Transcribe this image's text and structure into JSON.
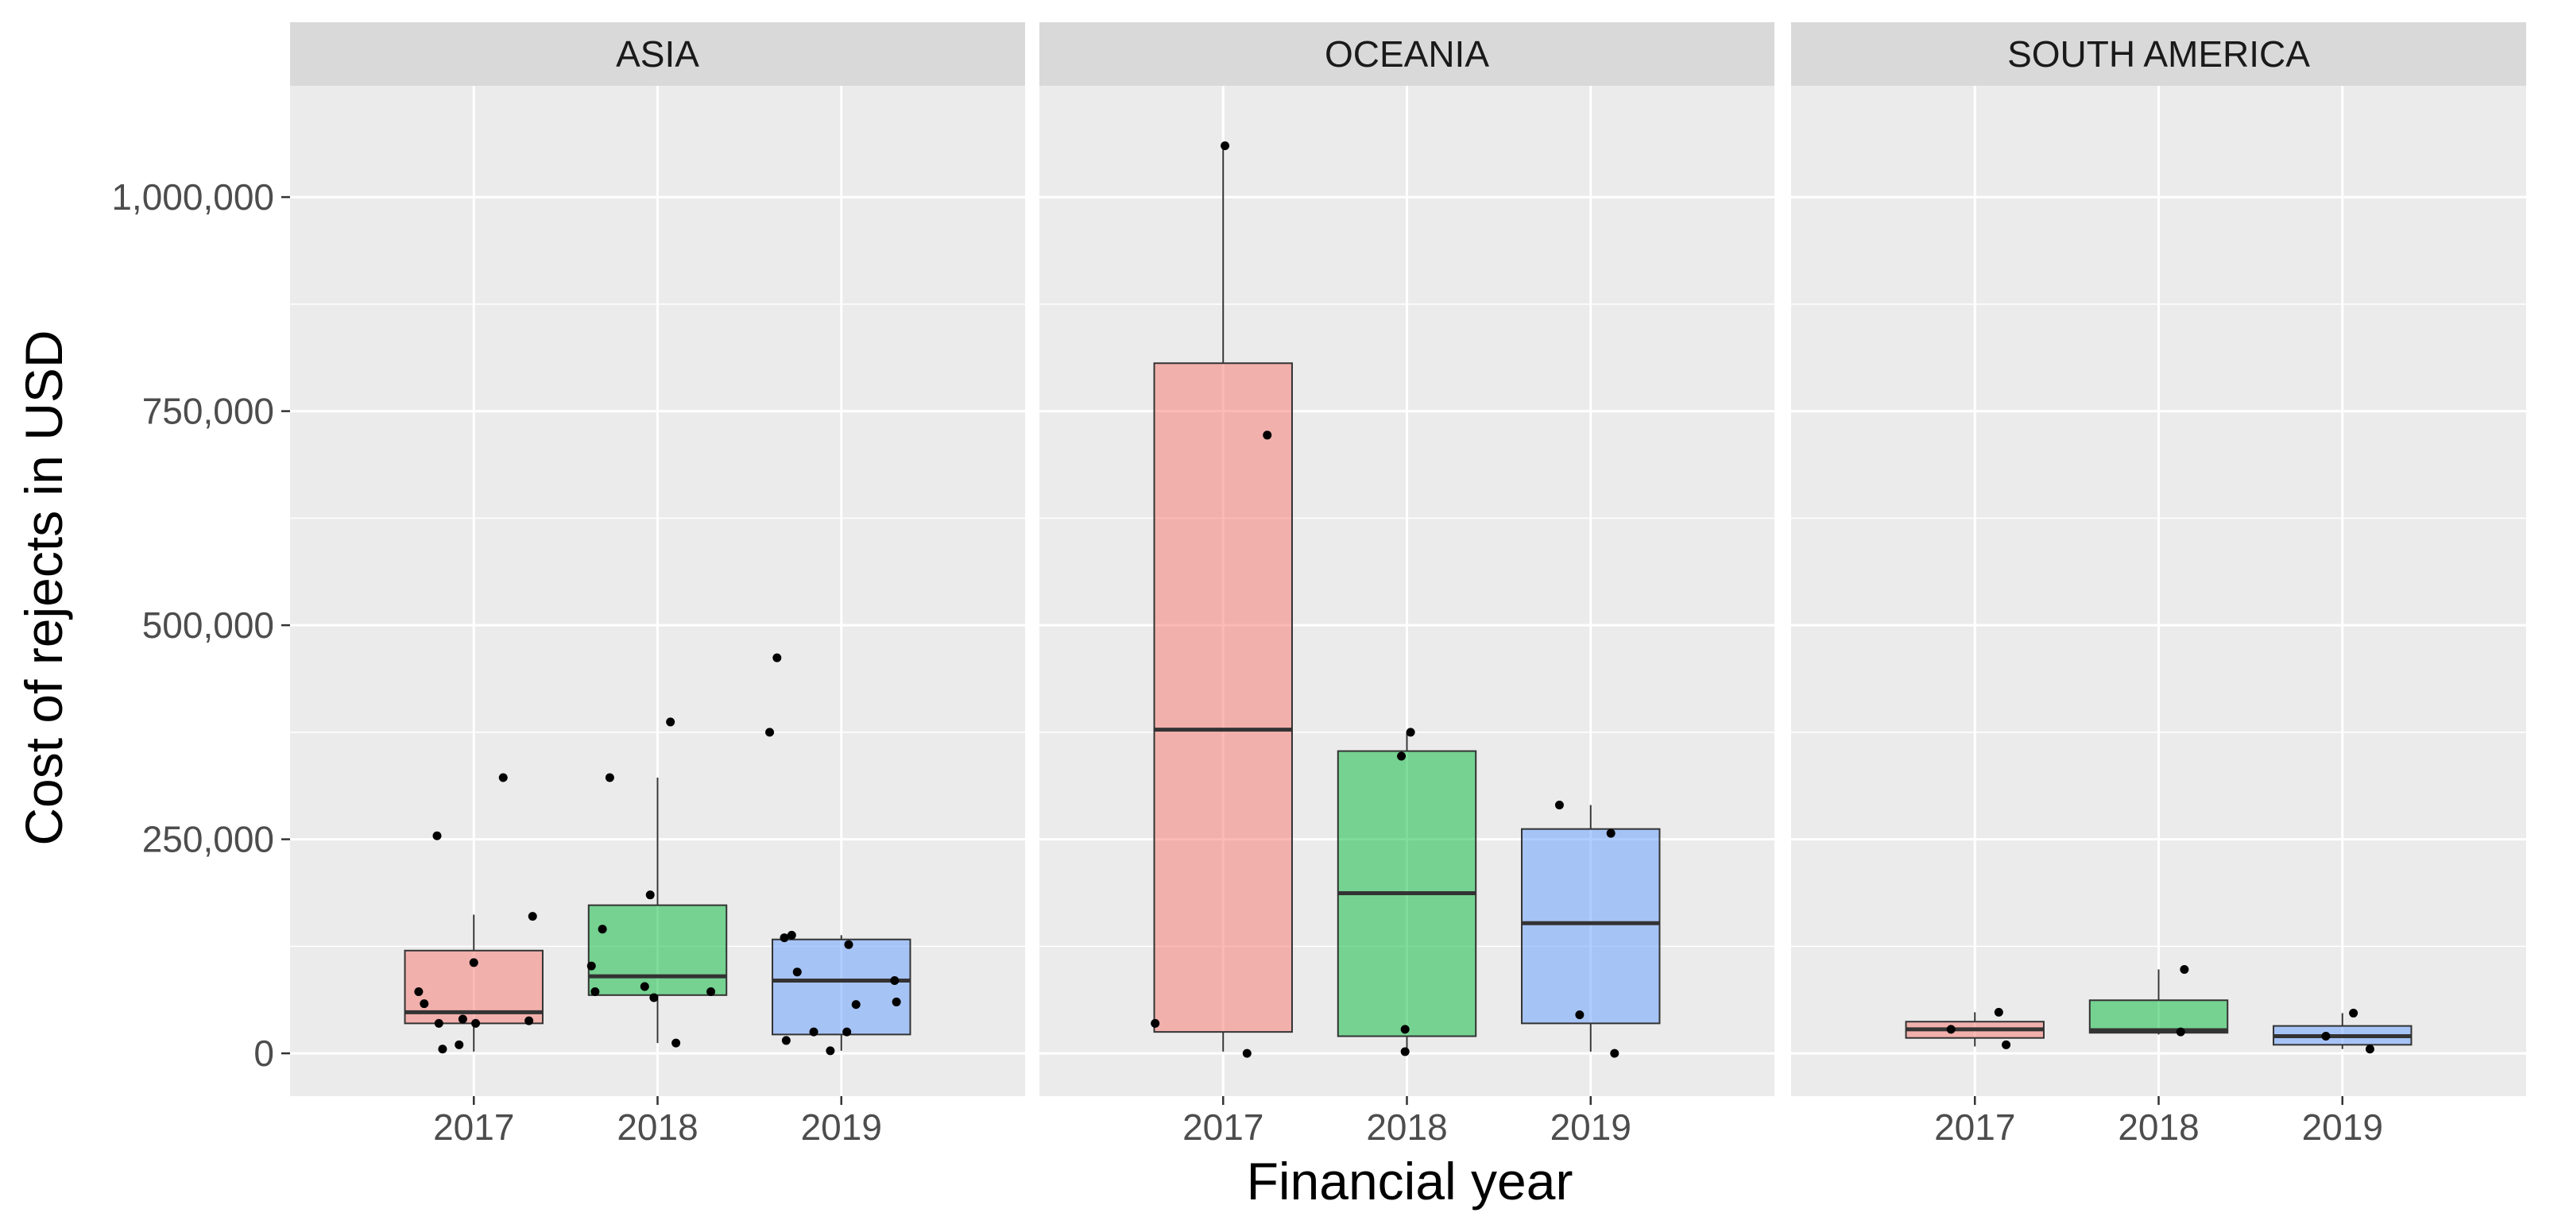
{
  "chart_data": {
    "type": "boxplot",
    "title": "",
    "xlabel": "Financial year",
    "ylabel": "Cost of rejects in USD",
    "ylim": [
      -50000,
      1130000
    ],
    "y_ticks": [
      0,
      250000,
      500000,
      750000,
      1000000
    ],
    "y_tick_labels": [
      "0",
      "250,000",
      "500,000",
      "750,000",
      "1,000,000"
    ],
    "categories": [
      "2017",
      "2018",
      "2019"
    ],
    "colors": {
      "2017": "#F8766D",
      "2018": "#00BA38",
      "2019": "#619CFF"
    },
    "grid": true,
    "legend": "none",
    "facets": [
      {
        "label": "ASIA",
        "boxes": [
          {
            "year": "2017",
            "min": 2000,
            "q1": 35000,
            "median": 48000,
            "q3": 120000,
            "max": 162000
          },
          {
            "year": "2018",
            "min": 12000,
            "q1": 68000,
            "median": 90000,
            "q3": 173000,
            "max": 322000
          },
          {
            "year": "2019",
            "min": 3000,
            "q1": 22000,
            "median": 85000,
            "q3": 133000,
            "max": 138000
          }
        ],
        "points": [
          {
            "year": "2017",
            "offset": -0.3,
            "value": 72000
          },
          {
            "year": "2017",
            "offset": -0.27,
            "value": 58000
          },
          {
            "year": "2017",
            "offset": -0.2,
            "value": 254000
          },
          {
            "year": "2017",
            "offset": -0.19,
            "value": 35000
          },
          {
            "year": "2017",
            "offset": -0.17,
            "value": 5000
          },
          {
            "year": "2017",
            "offset": -0.08,
            "value": 10000
          },
          {
            "year": "2017",
            "offset": -0.06,
            "value": 40000
          },
          {
            "year": "2017",
            "offset": 0.0,
            "value": 106000
          },
          {
            "year": "2017",
            "offset": 0.01,
            "value": 35000
          },
          {
            "year": "2017",
            "offset": 0.16,
            "value": 322000
          },
          {
            "year": "2017",
            "offset": 0.3,
            "value": 38000
          },
          {
            "year": "2017",
            "offset": 0.32,
            "value": 160000
          },
          {
            "year": "2018",
            "offset": -0.36,
            "value": 102000
          },
          {
            "year": "2018",
            "offset": -0.34,
            "value": 72000
          },
          {
            "year": "2018",
            "offset": -0.3,
            "value": 145000
          },
          {
            "year": "2018",
            "offset": -0.26,
            "value": 322000
          },
          {
            "year": "2018",
            "offset": -0.07,
            "value": 78000
          },
          {
            "year": "2018",
            "offset": -0.04,
            "value": 185000
          },
          {
            "year": "2018",
            "offset": -0.02,
            "value": 65000
          },
          {
            "year": "2018",
            "offset": 0.07,
            "value": 387000
          },
          {
            "year": "2018",
            "offset": 0.1,
            "value": 12000
          },
          {
            "year": "2018",
            "offset": 0.29,
            "value": 72000
          },
          {
            "year": "2019",
            "offset": -0.39,
            "value": 375000
          },
          {
            "year": "2019",
            "offset": -0.35,
            "value": 462000
          },
          {
            "year": "2019",
            "offset": -0.31,
            "value": 135000
          },
          {
            "year": "2019",
            "offset": -0.3,
            "value": 15000
          },
          {
            "year": "2019",
            "offset": -0.27,
            "value": 138000
          },
          {
            "year": "2019",
            "offset": -0.24,
            "value": 95000
          },
          {
            "year": "2019",
            "offset": -0.15,
            "value": 25000
          },
          {
            "year": "2019",
            "offset": -0.06,
            "value": 3000
          },
          {
            "year": "2019",
            "offset": 0.03,
            "value": 25000
          },
          {
            "year": "2019",
            "offset": 0.04,
            "value": 127000
          },
          {
            "year": "2019",
            "offset": 0.08,
            "value": 57000
          },
          {
            "year": "2019",
            "offset": 0.29,
            "value": 85000
          },
          {
            "year": "2019",
            "offset": 0.3,
            "value": 60000
          }
        ]
      },
      {
        "label": "OCEANIA",
        "boxes": [
          {
            "year": "2017",
            "min": 2000,
            "q1": 25000,
            "median": 378000,
            "q3": 806000,
            "max": 1060000
          },
          {
            "year": "2018",
            "min": 2000,
            "q1": 20000,
            "median": 187000,
            "q3": 353000,
            "max": 375000
          },
          {
            "year": "2019",
            "min": 2000,
            "q1": 35000,
            "median": 152000,
            "q3": 262000,
            "max": 290000
          }
        ],
        "points": [
          {
            "year": "2017",
            "offset": -0.37,
            "value": 35000
          },
          {
            "year": "2017",
            "offset": 0.01,
            "value": 1060000
          },
          {
            "year": "2017",
            "offset": 0.13,
            "value": 0
          },
          {
            "year": "2017",
            "offset": 0.24,
            "value": 722000
          },
          {
            "year": "2018",
            "offset": -0.03,
            "value": 347000
          },
          {
            "year": "2018",
            "offset": -0.01,
            "value": 28000
          },
          {
            "year": "2018",
            "offset": -0.01,
            "value": 2000
          },
          {
            "year": "2018",
            "offset": 0.02,
            "value": 375000
          },
          {
            "year": "2019",
            "offset": -0.17,
            "value": 290000
          },
          {
            "year": "2019",
            "offset": -0.06,
            "value": 45000
          },
          {
            "year": "2019",
            "offset": 0.11,
            "value": 257000
          },
          {
            "year": "2019",
            "offset": 0.13,
            "value": 0
          }
        ]
      },
      {
        "label": "SOUTH AMERICA",
        "boxes": [
          {
            "year": "2017",
            "min": 8000,
            "q1": 18000,
            "median": 28000,
            "q3": 37000,
            "max": 48000
          },
          {
            "year": "2018",
            "min": 22000,
            "q1": 24000,
            "median": 27000,
            "q3": 62000,
            "max": 98000
          },
          {
            "year": "2019",
            "min": 5000,
            "q1": 10000,
            "median": 20000,
            "q3": 32000,
            "max": 47000
          }
        ],
        "points": [
          {
            "year": "2017",
            "offset": -0.13,
            "value": 28000
          },
          {
            "year": "2017",
            "offset": 0.13,
            "value": 48000
          },
          {
            "year": "2017",
            "offset": 0.17,
            "value": 10000
          },
          {
            "year": "2018",
            "offset": 0.12,
            "value": 25000
          },
          {
            "year": "2018",
            "offset": 0.14,
            "value": 98000
          },
          {
            "year": "2019",
            "offset": -0.09,
            "value": 20000
          },
          {
            "year": "2019",
            "offset": 0.06,
            "value": 47000
          },
          {
            "year": "2019",
            "offset": 0.15,
            "value": 5000
          }
        ]
      }
    ]
  }
}
